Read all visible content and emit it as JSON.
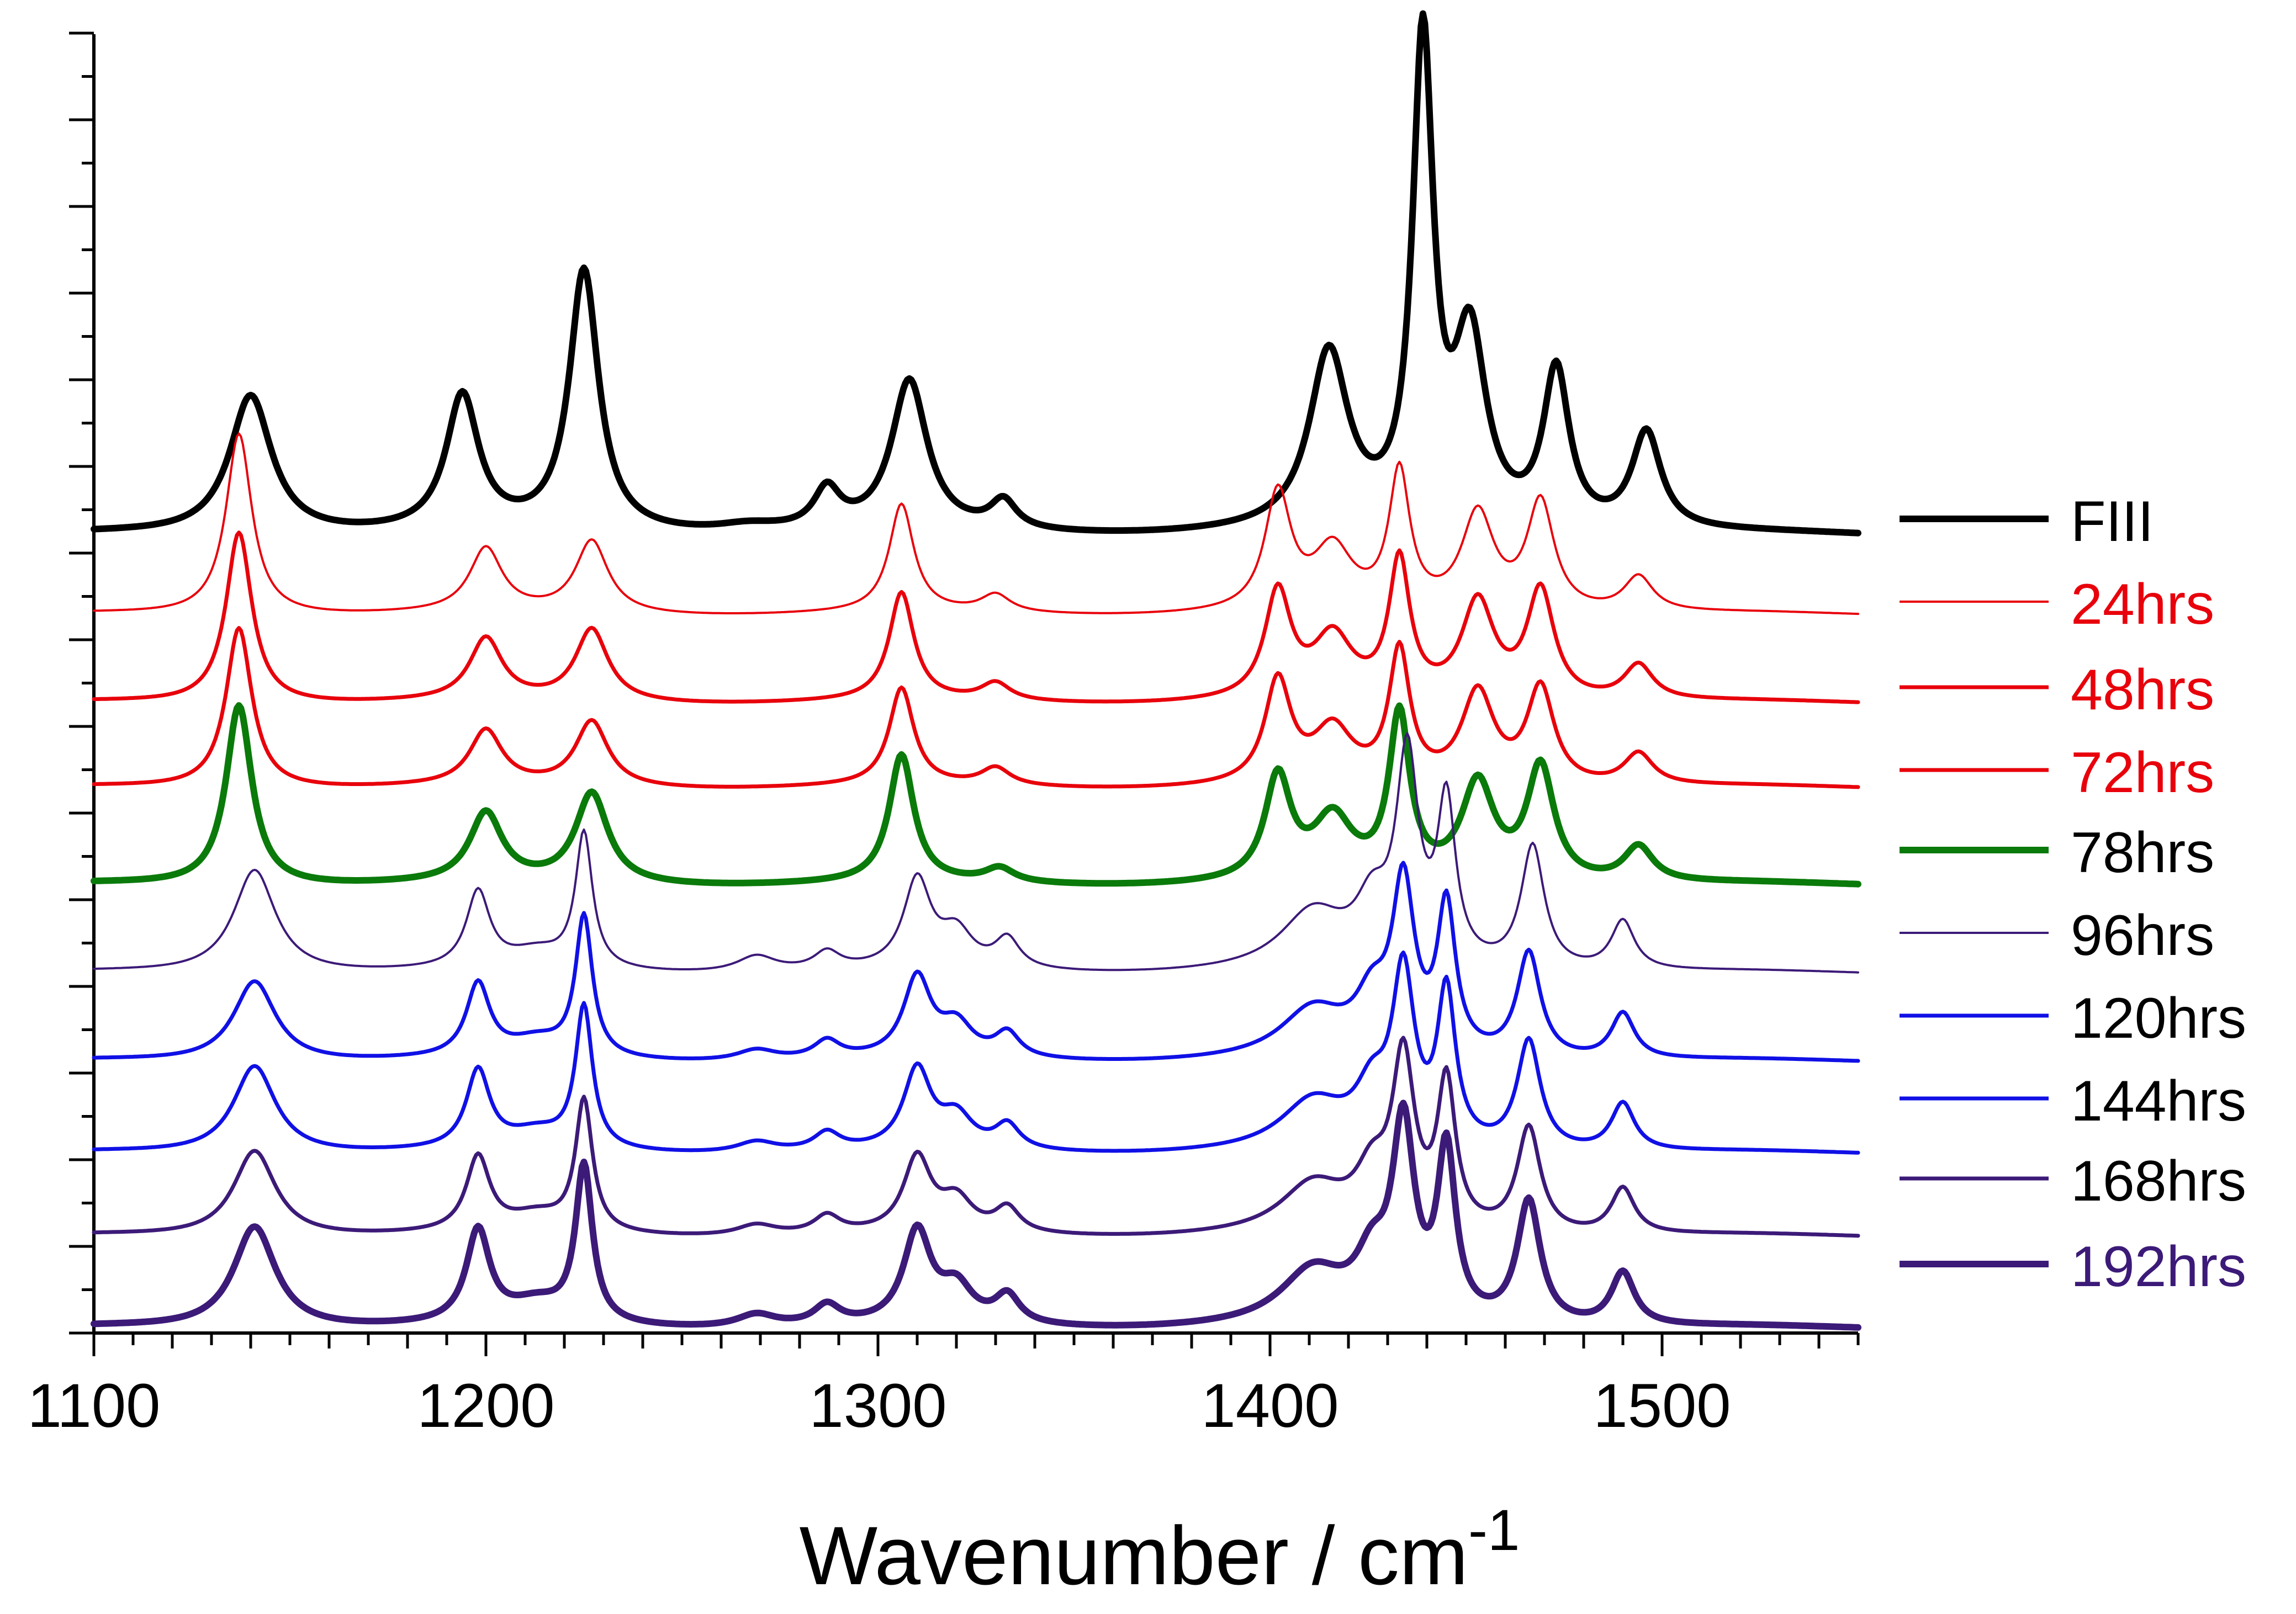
{
  "chart_data": {
    "type": "line",
    "title": "",
    "xlabel": "Wavenumber / cm",
    "xlabel_superscript": "-1",
    "ylabel": "",
    "xlim": [
      1100,
      1550
    ],
    "x_ticks": [
      1100,
      1200,
      1300,
      1400,
      1500
    ],
    "y_tick_labels_shown": false,
    "stacked_offset_spectra": true,
    "legend_placement": "right",
    "series": [
      {
        "name": "FIII",
        "color": "#000000",
        "weight": "bold",
        "baseline": 0,
        "peaks": [
          [
            1140,
            0.79,
            6.5
          ],
          [
            1194,
            0.76,
            5
          ],
          [
            1225,
            1.48,
            4.5
          ],
          [
            1267,
            0.04,
            10
          ],
          [
            1287,
            0.22,
            4
          ],
          [
            1308,
            0.85,
            5.5
          ],
          [
            1332,
            0.16,
            4
          ],
          [
            1415,
            0.99,
            6
          ],
          [
            1439,
            2.72,
            3.2
          ],
          [
            1451,
            1.05,
            5
          ],
          [
            1473,
            0.89,
            4
          ],
          [
            1496,
            0.55,
            4.5
          ]
        ]
      },
      {
        "name": "24hrs",
        "color": "#e8000b",
        "weight": "thin",
        "baseline": -0.45,
        "peaks": [
          [
            1137,
            1.03,
            4
          ],
          [
            1200,
            0.36,
            5
          ],
          [
            1227,
            0.41,
            5
          ],
          [
            1306,
            0.61,
            3.8
          ],
          [
            1330,
            0.1,
            4.5
          ],
          [
            1402,
            0.66,
            4
          ],
          [
            1416,
            0.34,
            6
          ],
          [
            1433,
            0.77,
            3.2
          ],
          [
            1453,
            0.55,
            5
          ],
          [
            1469,
            0.62,
            4.2
          ],
          [
            1494,
            0.2,
            4.5
          ]
        ]
      },
      {
        "name": "48hrs",
        "color": "#e8000b",
        "weight": "medium",
        "baseline": -0.95,
        "peaks": [
          [
            1137,
            0.97,
            4
          ],
          [
            1200,
            0.35,
            5
          ],
          [
            1227,
            0.41,
            5
          ],
          [
            1306,
            0.61,
            3.8
          ],
          [
            1330,
            0.1,
            4.5
          ],
          [
            1402,
            0.6,
            4
          ],
          [
            1416,
            0.34,
            6
          ],
          [
            1433,
            0.77,
            3.2
          ],
          [
            1453,
            0.55,
            5
          ],
          [
            1469,
            0.62,
            4.2
          ],
          [
            1494,
            0.2,
            4.5
          ]
        ]
      },
      {
        "name": "72hrs",
        "color": "#e8000b",
        "weight": "medium",
        "baseline": -1.43,
        "peaks": [
          [
            1137,
            0.91,
            4
          ],
          [
            1200,
            0.31,
            5
          ],
          [
            1227,
            0.37,
            5
          ],
          [
            1306,
            0.55,
            3.8
          ],
          [
            1330,
            0.1,
            4.5
          ],
          [
            1402,
            0.58,
            4
          ],
          [
            1416,
            0.3,
            6
          ],
          [
            1433,
            0.74,
            3.2
          ],
          [
            1453,
            0.52,
            5
          ],
          [
            1469,
            0.55,
            4.2
          ],
          [
            1494,
            0.18,
            4.5
          ]
        ]
      },
      {
        "name": "78hrs",
        "color": "#0a7a0a",
        "weight": "bold",
        "baseline": -1.98,
        "peaks": [
          [
            1137,
            1.02,
            4
          ],
          [
            1200,
            0.39,
            5
          ],
          [
            1227,
            0.51,
            5
          ],
          [
            1306,
            0.72,
            3.8
          ],
          [
            1331,
            0.08,
            4.5
          ],
          [
            1402,
            0.58,
            4
          ],
          [
            1416,
            0.34,
            6
          ],
          [
            1433,
            0.92,
            3.2
          ],
          [
            1453,
            0.55,
            5
          ],
          [
            1469,
            0.65,
            4.2
          ],
          [
            1494,
            0.2,
            4.5
          ]
        ]
      },
      {
        "name": "96hrs",
        "color": "#3c1a78",
        "weight": "thin",
        "baseline": -2.48,
        "peaks": [
          [
            1141,
            0.59,
            6.5
          ],
          [
            1198,
            0.43,
            3.6
          ],
          [
            1213,
            0.1,
            9
          ],
          [
            1225,
            0.76,
            2.6
          ],
          [
            1269,
            0.09,
            6
          ],
          [
            1287,
            0.1,
            4
          ],
          [
            1310,
            0.5,
            4.2
          ],
          [
            1320,
            0.2,
            5
          ],
          [
            1333,
            0.17,
            3.8
          ],
          [
            1411,
            0.32,
            10
          ],
          [
            1426,
            0.3,
            5
          ],
          [
            1435,
            1.16,
            3.4
          ],
          [
            1445,
            0.9,
            2.8
          ],
          [
            1467,
            0.7,
            3.6
          ],
          [
            1490,
            0.28,
            3.6
          ]
        ]
      },
      {
        "name": "120hrs",
        "color": "#1010e6",
        "weight": "medium",
        "baseline": -2.98,
        "peaks": [
          [
            1141,
            0.46,
            6.5
          ],
          [
            1198,
            0.41,
            3.6
          ],
          [
            1213,
            0.1,
            9
          ],
          [
            1225,
            0.79,
            2.6
          ],
          [
            1269,
            0.06,
            6
          ],
          [
            1287,
            0.1,
            4
          ],
          [
            1310,
            0.45,
            4.2
          ],
          [
            1320,
            0.18,
            5
          ],
          [
            1333,
            0.14,
            3.8
          ],
          [
            1411,
            0.27,
            10
          ],
          [
            1426,
            0.28,
            5
          ],
          [
            1434,
            0.94,
            3.4
          ],
          [
            1445,
            0.83,
            2.8
          ],
          [
            1466,
            0.6,
            3.6
          ],
          [
            1490,
            0.26,
            3.6
          ]
        ]
      },
      {
        "name": "144hrs",
        "color": "#1010e6",
        "weight": "medium",
        "baseline": -3.5,
        "peaks": [
          [
            1141,
            0.5,
            6.5
          ],
          [
            1198,
            0.44,
            3.6
          ],
          [
            1213,
            0.1,
            9
          ],
          [
            1225,
            0.8,
            2.6
          ],
          [
            1269,
            0.06,
            6
          ],
          [
            1287,
            0.1,
            4
          ],
          [
            1310,
            0.45,
            4.2
          ],
          [
            1320,
            0.18,
            5
          ],
          [
            1333,
            0.14,
            3.8
          ],
          [
            1411,
            0.27,
            10
          ],
          [
            1426,
            0.28,
            5
          ],
          [
            1434,
            0.95,
            3.4
          ],
          [
            1445,
            0.86,
            2.8
          ],
          [
            1466,
            0.62,
            3.6
          ],
          [
            1490,
            0.27,
            3.6
          ]
        ]
      },
      {
        "name": "168hrs",
        "color": "#3c1a78",
        "weight": "medium",
        "baseline": -3.97,
        "peaks": [
          [
            1141,
            0.49,
            6.5
          ],
          [
            1198,
            0.42,
            3.6
          ],
          [
            1213,
            0.1,
            9
          ],
          [
            1225,
            0.74,
            2.6
          ],
          [
            1269,
            0.06,
            6
          ],
          [
            1287,
            0.1,
            4
          ],
          [
            1310,
            0.42,
            4.2
          ],
          [
            1320,
            0.18,
            5
          ],
          [
            1333,
            0.14,
            3.8
          ],
          [
            1411,
            0.27,
            10
          ],
          [
            1426,
            0.28,
            5
          ],
          [
            1434,
            0.94,
            3.4
          ],
          [
            1445,
            0.82,
            2.8
          ],
          [
            1466,
            0.6,
            3.6
          ],
          [
            1490,
            0.26,
            3.6
          ]
        ]
      },
      {
        "name": "192hrs",
        "color": "#3c1a78",
        "weight": "bold",
        "baseline": -4.49,
        "peaks": [
          [
            1141,
            0.58,
            6.5
          ],
          [
            1198,
            0.52,
            3.6
          ],
          [
            1213,
            0.12,
            9
          ],
          [
            1225,
            0.88,
            2.6
          ],
          [
            1269,
            0.07,
            6
          ],
          [
            1287,
            0.11,
            4
          ],
          [
            1310,
            0.52,
            4.2
          ],
          [
            1320,
            0.2,
            5
          ],
          [
            1333,
            0.16,
            3.8
          ],
          [
            1411,
            0.3,
            10
          ],
          [
            1426,
            0.3,
            5
          ],
          [
            1434,
            1.07,
            3.4
          ],
          [
            1445,
            0.95,
            2.8
          ],
          [
            1466,
            0.7,
            3.6
          ],
          [
            1490,
            0.3,
            3.6
          ]
        ]
      }
    ]
  }
}
